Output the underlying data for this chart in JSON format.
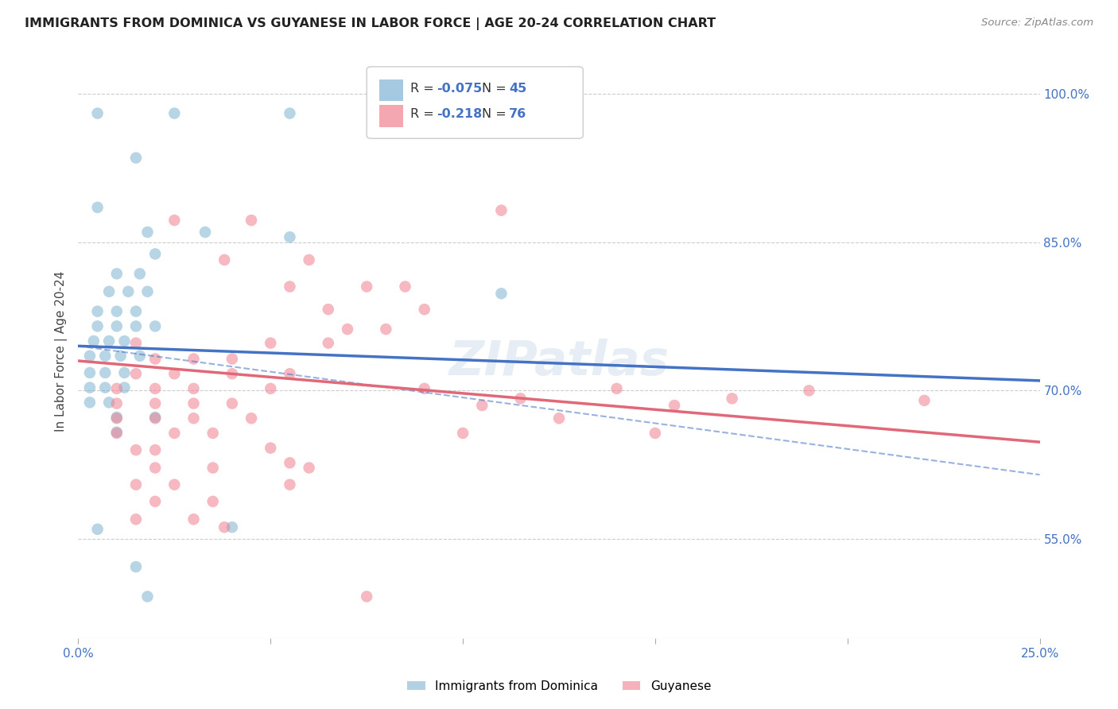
{
  "title": "IMMIGRANTS FROM DOMINICA VS GUYANESE IN LABOR FORCE | AGE 20-24 CORRELATION CHART",
  "source": "Source: ZipAtlas.com",
  "ylabel": "In Labor Force | Age 20-24",
  "xlim": [
    0.0,
    0.25
  ],
  "ylim": [
    0.45,
    1.03
  ],
  "xtick_positions": [
    0.0,
    0.05,
    0.1,
    0.15,
    0.2,
    0.25
  ],
  "xticklabels": [
    "0.0%",
    "",
    "",
    "",
    "",
    "25.0%"
  ],
  "yticks_right": [
    0.55,
    0.7,
    0.85,
    1.0
  ],
  "ytick_labels_right": [
    "55.0%",
    "70.0%",
    "85.0%",
    "100.0%"
  ],
  "dominica_color": "#7fb3d3",
  "guyanese_color": "#f08090",
  "dominica_line_color": "#4472c4",
  "guyanese_line_color": "#e06878",
  "dominica_line": [
    [
      0.0,
      0.745
    ],
    [
      0.25,
      0.71
    ]
  ],
  "guyanese_line": [
    [
      0.0,
      0.73
    ],
    [
      0.25,
      0.648
    ]
  ],
  "dominica_dashed_line": [
    [
      0.0,
      0.745
    ],
    [
      0.25,
      0.615
    ]
  ],
  "watermark": "ZIPatlas",
  "background_color": "#ffffff",
  "grid_color": "#cccccc",
  "tick_color": "#4472c4",
  "legend_r_dominica": "R = -0.075",
  "legend_n_dominica": "N = 45",
  "legend_r_guyanese": "R =  -0.218",
  "legend_n_guyanese": "N = 76",
  "dominica_dots": [
    [
      0.005,
      0.98
    ],
    [
      0.025,
      0.98
    ],
    [
      0.055,
      0.98
    ],
    [
      0.015,
      0.935
    ],
    [
      0.005,
      0.885
    ],
    [
      0.018,
      0.86
    ],
    [
      0.033,
      0.86
    ],
    [
      0.055,
      0.855
    ],
    [
      0.02,
      0.838
    ],
    [
      0.01,
      0.818
    ],
    [
      0.016,
      0.818
    ],
    [
      0.008,
      0.8
    ],
    [
      0.013,
      0.8
    ],
    [
      0.018,
      0.8
    ],
    [
      0.005,
      0.78
    ],
    [
      0.01,
      0.78
    ],
    [
      0.015,
      0.78
    ],
    [
      0.005,
      0.765
    ],
    [
      0.01,
      0.765
    ],
    [
      0.015,
      0.765
    ],
    [
      0.02,
      0.765
    ],
    [
      0.004,
      0.75
    ],
    [
      0.008,
      0.75
    ],
    [
      0.012,
      0.75
    ],
    [
      0.003,
      0.735
    ],
    [
      0.007,
      0.735
    ],
    [
      0.011,
      0.735
    ],
    [
      0.016,
      0.735
    ],
    [
      0.003,
      0.718
    ],
    [
      0.007,
      0.718
    ],
    [
      0.012,
      0.718
    ],
    [
      0.003,
      0.703
    ],
    [
      0.007,
      0.703
    ],
    [
      0.012,
      0.703
    ],
    [
      0.003,
      0.688
    ],
    [
      0.008,
      0.688
    ],
    [
      0.01,
      0.673
    ],
    [
      0.02,
      0.673
    ],
    [
      0.01,
      0.658
    ],
    [
      0.005,
      0.56
    ],
    [
      0.04,
      0.562
    ],
    [
      0.015,
      0.522
    ],
    [
      0.018,
      0.492
    ],
    [
      0.11,
      0.798
    ]
  ],
  "guyanese_dots": [
    [
      0.025,
      0.872
    ],
    [
      0.045,
      0.872
    ],
    [
      0.038,
      0.832
    ],
    [
      0.06,
      0.832
    ],
    [
      0.055,
      0.805
    ],
    [
      0.075,
      0.805
    ],
    [
      0.085,
      0.805
    ],
    [
      0.065,
      0.782
    ],
    [
      0.09,
      0.782
    ],
    [
      0.07,
      0.762
    ],
    [
      0.08,
      0.762
    ],
    [
      0.015,
      0.748
    ],
    [
      0.05,
      0.748
    ],
    [
      0.065,
      0.748
    ],
    [
      0.02,
      0.732
    ],
    [
      0.03,
      0.732
    ],
    [
      0.04,
      0.732
    ],
    [
      0.015,
      0.717
    ],
    [
      0.025,
      0.717
    ],
    [
      0.04,
      0.717
    ],
    [
      0.055,
      0.717
    ],
    [
      0.01,
      0.702
    ],
    [
      0.02,
      0.702
    ],
    [
      0.03,
      0.702
    ],
    [
      0.05,
      0.702
    ],
    [
      0.01,
      0.687
    ],
    [
      0.02,
      0.687
    ],
    [
      0.03,
      0.687
    ],
    [
      0.04,
      0.687
    ],
    [
      0.01,
      0.672
    ],
    [
      0.02,
      0.672
    ],
    [
      0.03,
      0.672
    ],
    [
      0.045,
      0.672
    ],
    [
      0.01,
      0.657
    ],
    [
      0.025,
      0.657
    ],
    [
      0.035,
      0.657
    ],
    [
      0.015,
      0.64
    ],
    [
      0.02,
      0.64
    ],
    [
      0.02,
      0.622
    ],
    [
      0.035,
      0.622
    ],
    [
      0.06,
      0.622
    ],
    [
      0.015,
      0.605
    ],
    [
      0.025,
      0.605
    ],
    [
      0.055,
      0.605
    ],
    [
      0.02,
      0.588
    ],
    [
      0.035,
      0.588
    ],
    [
      0.015,
      0.57
    ],
    [
      0.03,
      0.57
    ],
    [
      0.05,
      0.642
    ],
    [
      0.055,
      0.627
    ],
    [
      0.09,
      0.702
    ],
    [
      0.14,
      0.702
    ],
    [
      0.105,
      0.685
    ],
    [
      0.155,
      0.685
    ],
    [
      0.125,
      0.672
    ],
    [
      0.19,
      0.7
    ],
    [
      0.22,
      0.69
    ],
    [
      0.1,
      0.657
    ],
    [
      0.15,
      0.657
    ],
    [
      0.11,
      0.882
    ],
    [
      0.038,
      0.562
    ],
    [
      0.075,
      0.492
    ],
    [
      0.115,
      0.692
    ],
    [
      0.17,
      0.692
    ]
  ]
}
